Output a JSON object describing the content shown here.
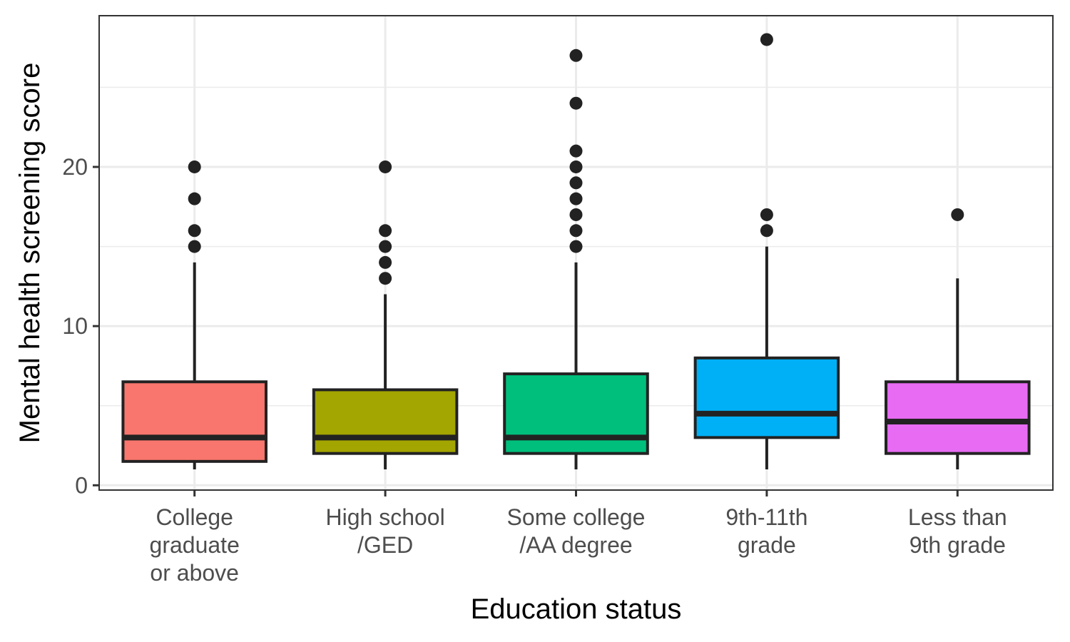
{
  "chart_data": {
    "type": "box",
    "xlabel": "Education status",
    "ylabel": "Mental health screening score",
    "ylim": [
      -0.3,
      29.5
    ],
    "y_ticks": [
      0,
      10,
      20
    ],
    "y_minor_ticks": [
      5,
      15,
      25
    ],
    "grid": true,
    "legend": "none",
    "categories": [
      {
        "label_lines": [
          "College",
          "graduate",
          "or above"
        ],
        "color": "#F8766D",
        "q1": 1.5,
        "median": 3,
        "q3": 6.5,
        "whisker_low": 1,
        "whisker_high": 14,
        "outliers": [
          15,
          16,
          18,
          20
        ]
      },
      {
        "label_lines": [
          "High school",
          "/GED"
        ],
        "color": "#A3A500",
        "q1": 2,
        "median": 3,
        "q3": 6,
        "whisker_low": 1,
        "whisker_high": 12,
        "outliers": [
          13,
          14,
          15,
          16,
          20
        ]
      },
      {
        "label_lines": [
          "Some college",
          "/AA degree"
        ],
        "color": "#00BF7D",
        "q1": 2,
        "median": 3,
        "q3": 7,
        "whisker_low": 1,
        "whisker_high": 14,
        "outliers": [
          15,
          16,
          17,
          18,
          19,
          20,
          21,
          24,
          27
        ]
      },
      {
        "label_lines": [
          "9th-11th",
          "grade"
        ],
        "color": "#00B0F6",
        "q1": 3,
        "median": 4.5,
        "q3": 8,
        "whisker_low": 1,
        "whisker_high": 15,
        "outliers": [
          16,
          17,
          28
        ]
      },
      {
        "label_lines": [
          "Less than",
          "9th grade"
        ],
        "color": "#E76BF3",
        "q1": 2,
        "median": 4,
        "q3": 6.5,
        "whisker_low": 1,
        "whisker_high": 13,
        "outliers": [
          17
        ]
      }
    ]
  }
}
